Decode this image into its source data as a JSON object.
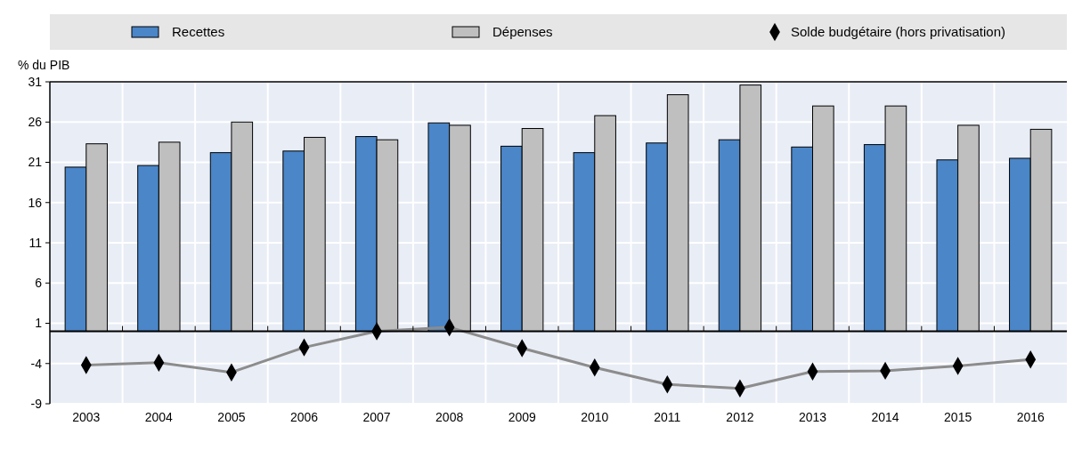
{
  "chart_data": {
    "type": "bar",
    "ylabel": "% du PIB",
    "categories": [
      "2003",
      "2004",
      "2005",
      "2006",
      "2007",
      "2008",
      "2009",
      "2010",
      "2011",
      "2012",
      "2013",
      "2014",
      "2015",
      "2016"
    ],
    "series": [
      {
        "name": "Recettes",
        "color": "#4a86c8",
        "values": [
          20.4,
          20.6,
          22.2,
          22.4,
          24.2,
          25.9,
          23.0,
          22.2,
          23.4,
          23.8,
          22.9,
          23.2,
          21.3,
          21.5
        ]
      },
      {
        "name": "Dépenses",
        "color": "#bfbfbf",
        "values": [
          23.3,
          23.5,
          26.0,
          24.1,
          23.8,
          25.6,
          25.2,
          26.8,
          29.4,
          30.6,
          28.0,
          28.0,
          25.6,
          25.1
        ]
      },
      {
        "name": "Solde budgétaire (hors privatisation)",
        "type": "line",
        "color": "#000000",
        "marker": "diamond",
        "values": [
          -4.2,
          -3.9,
          -5.1,
          -2.0,
          0.0,
          0.5,
          -2.1,
          -4.5,
          -6.6,
          -7.1,
          -5.0,
          -4.9,
          -4.3,
          -3.5
        ]
      }
    ],
    "ylim": [
      -9,
      31
    ],
    "yticks": [
      -9,
      -4,
      1,
      6,
      11,
      16,
      21,
      26,
      31
    ],
    "grid": true,
    "legend": "top"
  }
}
